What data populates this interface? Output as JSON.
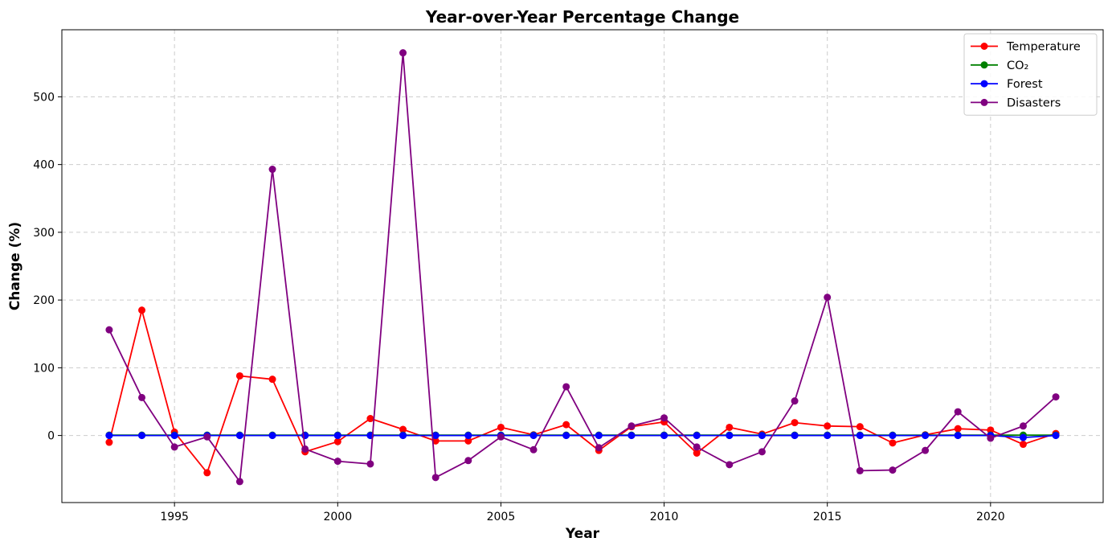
{
  "chart_data": {
    "type": "line",
    "title": "Year-over-Year Percentage Change",
    "xlabel": "Year",
    "ylabel": "Change (%)",
    "xlim": [
      1991.55,
      1993.0
    ],
    "x_range": [
      1991.55,
      2023.45
    ],
    "ylim": [
      -99,
      599
    ],
    "x_ticks": [
      1995,
      2000,
      2005,
      2010,
      2015,
      2020
    ],
    "y_ticks": [
      0,
      100,
      200,
      300,
      400,
      500
    ],
    "x_tick_labels": [
      "1995",
      "2000",
      "2005",
      "2010",
      "2015",
      "2020"
    ],
    "y_tick_labels": [
      "0",
      "100",
      "200",
      "300",
      "400",
      "500"
    ],
    "grid": true,
    "legend_position": "top-right",
    "x": [
      1993,
      1994,
      1995,
      1996,
      1997,
      1998,
      1999,
      2000,
      2001,
      2002,
      2003,
      2004,
      2005,
      2006,
      2007,
      2008,
      2009,
      2010,
      2011,
      2012,
      2013,
      2014,
      2015,
      2016,
      2017,
      2018,
      2019,
      2020,
      2021,
      2022
    ],
    "series": [
      {
        "name": "Temperature",
        "color": "#ff0000",
        "values": [
          -10,
          185,
          5,
          -55,
          88,
          83,
          -24,
          -9,
          25,
          9,
          -8,
          -8,
          12,
          1,
          16,
          -22,
          13,
          20,
          -26,
          12,
          2,
          19,
          14,
          13,
          -11,
          1,
          10,
          8,
          -13,
          3
        ]
      },
      {
        "name": "CO₂",
        "color": "#008000",
        "values": [
          0.5,
          0.5,
          0.5,
          0.5,
          0.5,
          0.5,
          0.5,
          0.5,
          0.5,
          0.5,
          0.5,
          0.5,
          0.5,
          0.5,
          0.5,
          0.5,
          0.5,
          0.5,
          0.5,
          0.5,
          0.5,
          0.5,
          0.5,
          0.5,
          0.5,
          0.5,
          0.5,
          0.5,
          0.5,
          0.5
        ]
      },
      {
        "name": "Forest",
        "color": "#0000ff",
        "values": [
          0,
          0,
          0,
          0,
          0,
          0,
          0,
          0,
          0,
          0,
          0,
          0,
          0,
          0,
          0,
          0,
          0,
          0,
          0,
          0,
          0,
          0,
          0,
          0,
          0,
          0,
          0,
          0,
          -3,
          0
        ]
      },
      {
        "name": "Disasters",
        "color": "#800080",
        "values": [
          156,
          56,
          -17,
          -2,
          -68,
          393,
          -20,
          -38,
          -42,
          565,
          -62,
          -37,
          -2,
          -21,
          72,
          -18,
          14,
          26,
          -17,
          -43,
          -24,
          51,
          204,
          -52,
          -51,
          -22,
          35,
          -4,
          14,
          57
        ]
      }
    ]
  }
}
